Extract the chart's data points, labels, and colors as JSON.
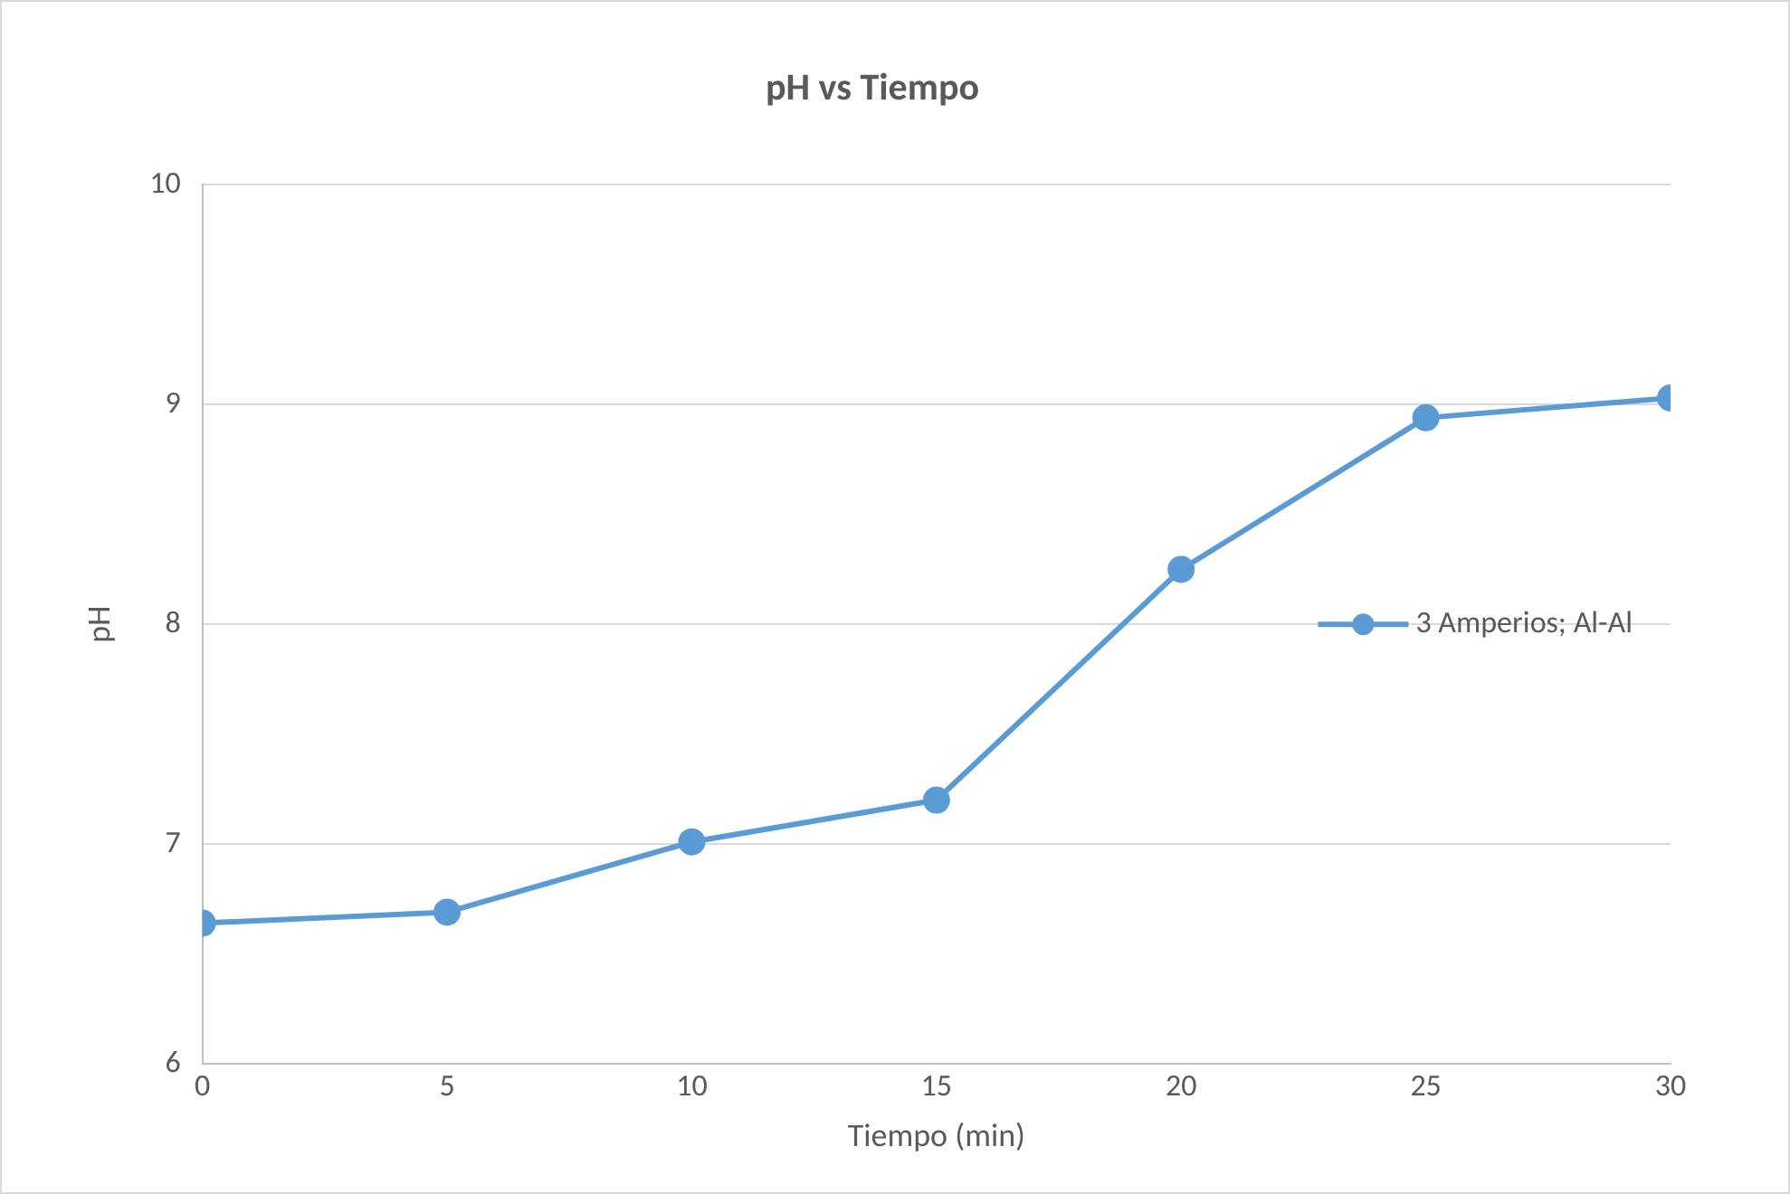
{
  "chart_data": {
    "type": "line",
    "title": "pH vs Tiempo",
    "xlabel": "Tiempo (min)",
    "ylabel": "pH",
    "x": [
      0,
      5,
      10,
      15,
      20,
      25,
      30
    ],
    "series": [
      {
        "name": "3 Amperios; Al-Al",
        "color": "#5b9bd5",
        "values": [
          6.64,
          6.69,
          7.01,
          7.2,
          8.25,
          8.94,
          9.03
        ]
      }
    ],
    "xlim": [
      0,
      30
    ],
    "xticks": [
      0,
      5,
      10,
      15,
      20,
      25,
      30
    ],
    "ylim": [
      6,
      10
    ],
    "yticks": [
      6,
      7,
      8,
      9,
      10
    ],
    "grid": "y",
    "legend": "right",
    "marker": "circle",
    "line_style": "solid"
  }
}
